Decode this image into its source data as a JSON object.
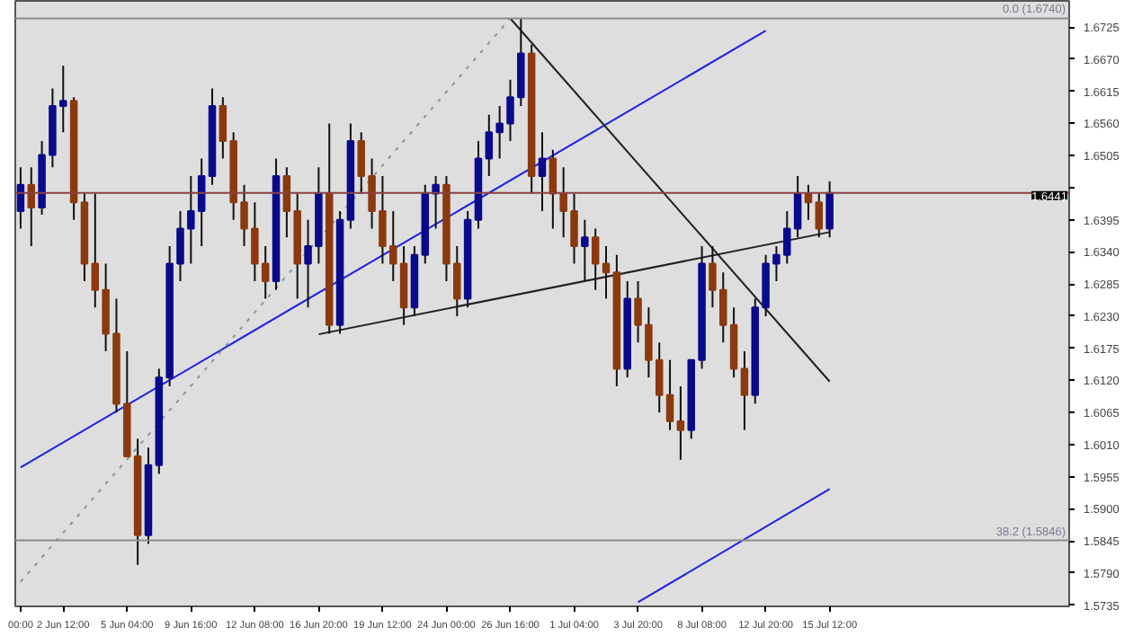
{
  "chart_data": {
    "type": "candlestick",
    "categories": [
      "00:00",
      null,
      null,
      null,
      "2 Jun 12:00",
      null,
      null,
      null,
      null,
      null,
      "5 Jun 04:00",
      null,
      null,
      null,
      null,
      null,
      "9 Jun 16:00",
      null,
      null,
      null,
      null,
      null,
      "12 Jun 08:00",
      null,
      null,
      null,
      null,
      null,
      "16 Jun 20:00",
      null,
      null,
      null,
      null,
      null,
      "19 Jun 12:00",
      null,
      null,
      null,
      null,
      null,
      "24 Jun 00:00",
      null,
      null,
      null,
      null,
      null,
      "26 Jun 16:00",
      null,
      null,
      null,
      null,
      null,
      "1 Jul 04:00",
      null,
      null,
      null,
      null,
      null,
      "3 Jul 20:00",
      null,
      null,
      null,
      null,
      null,
      "8 Jul 08:00",
      null,
      null,
      null,
      null,
      null,
      "12 Jul 20:00",
      null,
      null,
      null,
      null,
      null,
      "15 Jul 12:00",
      null,
      null,
      null,
      null,
      null,
      null,
      null,
      null,
      null,
      null,
      null,
      null,
      null,
      null,
      null,
      null,
      null,
      null,
      null,
      null,
      null,
      null
    ],
    "ohlc": [
      [
        1.641,
        1.6485,
        1.638,
        1.6455
      ],
      [
        1.6455,
        1.6485,
        1.635,
        1.6416
      ],
      [
        1.6416,
        1.653,
        1.6404,
        1.6506
      ],
      [
        1.6506,
        1.662,
        1.6485,
        1.659
      ],
      [
        1.659,
        1.6659,
        1.6545,
        1.6599
      ],
      [
        1.6599,
        1.6605,
        1.6395,
        1.6425
      ],
      [
        1.6425,
        1.644,
        1.629,
        1.632
      ],
      [
        1.632,
        1.644,
        1.6245,
        1.6275
      ],
      [
        1.6275,
        1.632,
        1.617,
        1.62
      ],
      [
        1.62,
        1.626,
        1.6065,
        1.608
      ],
      [
        1.608,
        1.617,
        1.599,
        1.599
      ],
      [
        1.599,
        1.602,
        1.5804,
        1.5855
      ],
      [
        1.5855,
        1.6005,
        1.584,
        1.5975
      ],
      [
        1.5975,
        1.614,
        1.596,
        1.6125
      ],
      [
        1.6125,
        1.635,
        1.611,
        1.632
      ],
      [
        1.632,
        1.641,
        1.629,
        1.638
      ],
      [
        1.638,
        1.647,
        1.632,
        1.641
      ],
      [
        1.641,
        1.65,
        1.635,
        1.647
      ],
      [
        1.647,
        1.662,
        1.6455,
        1.659
      ],
      [
        1.659,
        1.6605,
        1.65,
        1.653
      ],
      [
        1.653,
        1.6545,
        1.6395,
        1.6425
      ],
      [
        1.6425,
        1.6455,
        1.635,
        1.638
      ],
      [
        1.638,
        1.6425,
        1.629,
        1.632
      ],
      [
        1.632,
        1.635,
        1.626,
        1.629
      ],
      [
        1.629,
        1.65,
        1.6275,
        1.647
      ],
      [
        1.647,
        1.6485,
        1.6365,
        1.641
      ],
      [
        1.641,
        1.644,
        1.626,
        1.632
      ],
      [
        1.632,
        1.6395,
        1.6245,
        1.635
      ],
      [
        1.635,
        1.6485,
        1.632,
        1.644
      ],
      [
        1.644,
        1.656,
        1.62,
        1.6215
      ],
      [
        1.6215,
        1.641,
        1.62,
        1.6395
      ],
      [
        1.6395,
        1.656,
        1.638,
        1.653
      ],
      [
        1.653,
        1.6545,
        1.644,
        1.647
      ],
      [
        1.647,
        1.65,
        1.638,
        1.641
      ],
      [
        1.641,
        1.647,
        1.632,
        1.635
      ],
      [
        1.635,
        1.641,
        1.629,
        1.632
      ],
      [
        1.632,
        1.635,
        1.6215,
        1.6245
      ],
      [
        1.6245,
        1.635,
        1.623,
        1.6335
      ],
      [
        1.6335,
        1.6455,
        1.632,
        1.644
      ],
      [
        1.644,
        1.647,
        1.638,
        1.6455
      ],
      [
        1.6455,
        1.647,
        1.629,
        1.632
      ],
      [
        1.632,
        1.635,
        1.623,
        1.626
      ],
      [
        1.626,
        1.641,
        1.6245,
        1.6395
      ],
      [
        1.6395,
        1.653,
        1.638,
        1.65
      ],
      [
        1.65,
        1.6575,
        1.647,
        1.6545
      ],
      [
        1.6545,
        1.659,
        1.65,
        1.656
      ],
      [
        1.656,
        1.6635,
        1.653,
        1.6605
      ],
      [
        1.6605,
        1.674,
        1.659,
        1.668
      ],
      [
        1.668,
        1.6695,
        1.644,
        1.647
      ],
      [
        1.647,
        1.6545,
        1.641,
        1.65
      ],
      [
        1.65,
        1.6515,
        1.638,
        1.644
      ],
      [
        1.644,
        1.6485,
        1.6365,
        1.641
      ],
      [
        1.641,
        1.644,
        1.632,
        1.635
      ],
      [
        1.635,
        1.6395,
        1.629,
        1.6365
      ],
      [
        1.6365,
        1.638,
        1.6275,
        1.632
      ],
      [
        1.632,
        1.635,
        1.626,
        1.6305
      ],
      [
        1.6305,
        1.6335,
        1.611,
        1.614
      ],
      [
        1.614,
        1.629,
        1.6125,
        1.626
      ],
      [
        1.626,
        1.629,
        1.6185,
        1.6215
      ],
      [
        1.6215,
        1.6245,
        1.6125,
        1.6155
      ],
      [
        1.6155,
        1.6185,
        1.6065,
        1.6095
      ],
      [
        1.6095,
        1.6155,
        1.6035,
        1.605
      ],
      [
        1.605,
        1.611,
        1.5984,
        1.6035
      ],
      [
        1.6035,
        1.6155,
        1.602,
        1.6155
      ],
      [
        1.6155,
        1.635,
        1.614,
        1.632
      ],
      [
        1.632,
        1.635,
        1.6245,
        1.6275
      ],
      [
        1.6275,
        1.6305,
        1.6185,
        1.6215
      ],
      [
        1.6215,
        1.6245,
        1.6125,
        1.614
      ],
      [
        1.614,
        1.617,
        1.6035,
        1.6095
      ],
      [
        1.6095,
        1.626,
        1.608,
        1.6245
      ],
      [
        1.6245,
        1.6335,
        1.623,
        1.632
      ],
      [
        1.632,
        1.635,
        1.629,
        1.6335
      ],
      [
        1.6335,
        1.641,
        1.632,
        1.638
      ],
      [
        1.638,
        1.647,
        1.6365,
        1.644
      ],
      [
        1.644,
        1.6455,
        1.6395,
        1.6425
      ],
      [
        1.6425,
        1.644,
        1.6365,
        1.638
      ],
      [
        1.638,
        1.6461,
        1.6365,
        1.6441
      ],
      null,
      null,
      null,
      null,
      null,
      null,
      null,
      null,
      null,
      null,
      null,
      null,
      null,
      null,
      null,
      null,
      null,
      null,
      null,
      null,
      null,
      null
    ],
    "colors": [
      "#0a0a8c",
      "#8b3a0f",
      "#0a0a8c",
      "#0a0a8c",
      "#0a0a8c",
      "#8b3a0f",
      "#8b3a0f",
      "#8b3a0f",
      "#8b3a0f",
      "#8b3a0f",
      "#8b3a0f",
      "#8b3a0f",
      "#0a0a8c",
      "#0a0a8c",
      "#0a0a8c",
      "#0a0a8c",
      "#0a0a8c",
      "#0a0a8c",
      "#0a0a8c",
      "#8b3a0f",
      "#8b3a0f",
      "#8b3a0f",
      "#8b3a0f",
      "#8b3a0f",
      "#0a0a8c",
      "#8b3a0f",
      "#8b3a0f",
      "#0a0a8c",
      "#0a0a8c",
      "#8b3a0f",
      "#0a0a8c",
      "#0a0a8c",
      "#8b3a0f",
      "#8b3a0f",
      "#8b3a0f",
      "#8b3a0f",
      "#8b3a0f",
      "#0a0a8c",
      "#0a0a8c",
      "#0a0a8c",
      "#8b3a0f",
      "#8b3a0f",
      "#0a0a8c",
      "#0a0a8c",
      "#0a0a8c",
      "#0a0a8c",
      "#0a0a8c",
      "#0a0a8c",
      "#8b3a0f",
      "#0a0a8c",
      "#8b3a0f",
      "#8b3a0f",
      "#8b3a0f",
      "#0a0a8c",
      "#8b3a0f",
      "#8b3a0f",
      "#8b3a0f",
      "#0a0a8c",
      "#8b3a0f",
      "#8b3a0f",
      "#8b3a0f",
      "#8b3a0f",
      "#8b3a0f",
      "#0a0a8c",
      "#0a0a8c",
      "#8b3a0f",
      "#8b3a0f",
      "#8b3a0f",
      "#8b3a0f",
      "#0a0a8c",
      "#0a0a8c",
      "#0a0a8c",
      "#0a0a8c",
      "#0a0a8c",
      "#8b3a0f",
      "#8b3a0f",
      "#0a0a8c",
      null,
      null,
      null,
      null,
      null,
      null,
      null,
      null,
      null,
      null,
      null,
      null,
      null,
      null,
      null,
      null,
      null,
      null,
      null,
      null,
      null,
      null
    ],
    "series": [
      {
        "type": "line",
        "color": "#2020e0",
        "line_style": "solid",
        "x": [
          "00:00",
          "12 Jul 20:00"
        ],
        "values": [
          1.5971,
          1.6719
        ]
      },
      {
        "type": "line",
        "color": "#2020e0",
        "line_style": "solid",
        "x": [
          "3 Jul 20:00",
          "15 Jul 12:00"
        ],
        "values": [
          1.574,
          1.5934
        ]
      },
      {
        "type": "line",
        "color": "#202020",
        "line_style": "solid",
        "x": [
          "26 Jun 16:00",
          "15 Jul 12:00"
        ],
        "values": [
          1.674,
          1.6118
        ]
      },
      {
        "type": "line",
        "color": "#202020",
        "line_style": "solid",
        "x": [
          "16 Jun 20:00",
          "15 Jul 12:00"
        ],
        "values": [
          1.6199,
          1.6374
        ]
      },
      {
        "type": "line",
        "color": "#909090",
        "line_style": "dotted",
        "x": [
          "00:00",
          "26 Jun 16:00"
        ],
        "values": [
          1.5775,
          1.674
        ]
      }
    ],
    "ref_lines": [
      {
        "axis": "y",
        "value": 1.674,
        "label": "0.0 (1.6740)",
        "color": "#8c8c8c"
      },
      {
        "axis": "y",
        "value": 1.5846,
        "label": "38.2 (1.5846)",
        "color": "#8c8c8c"
      },
      {
        "axis": "y",
        "value": 1.6441,
        "label": "1.6441",
        "color": "#8b4040"
      }
    ],
    "ylim": [
      1.5733,
      1.677
    ],
    "yticks": [
      1.5735,
      {
        "value": 1.579,
        "label": "1.5790"
      },
      1.5845,
      {
        "value": 1.59,
        "label": "1.5900"
      },
      1.5955,
      {
        "value": 1.601,
        "label": "1.6010"
      },
      1.6065,
      {
        "value": 1.612,
        "label": "1.6120"
      },
      1.6175,
      {
        "value": 1.623,
        "label": "1.6230"
      },
      1.6285,
      {
        "value": 1.634,
        "label": "1.6340"
      },
      1.6395,
      {
        "value": 1.645,
        "label": null
      },
      1.6505,
      {
        "value": 1.656,
        "label": "1.6560"
      },
      1.6615,
      {
        "value": 1.667,
        "label": "1.6670"
      },
      1.6725
    ]
  }
}
